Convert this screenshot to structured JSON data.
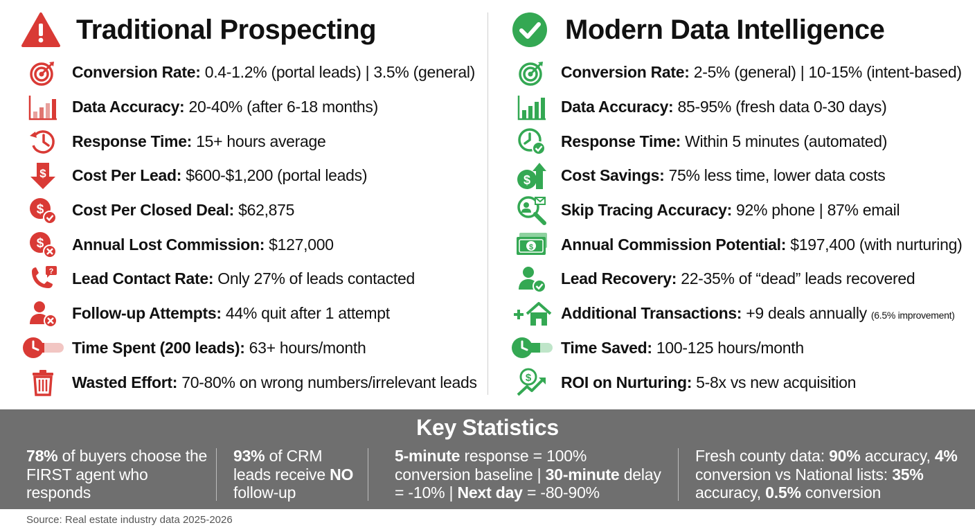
{
  "colors": {
    "accent_red": "#d93a35",
    "accent_green": "#34a853",
    "stats_bg": "#6f6f6f"
  },
  "traditional": {
    "title": "Traditional Prospecting",
    "header_icon": "warning-icon",
    "items": [
      {
        "icon": "target-icon",
        "label": "Conversion Rate:",
        "value": " 0.4-1.2% (portal leads) | 3.5% (general)"
      },
      {
        "icon": "bar-chart-icon",
        "label": "Data Accuracy:",
        "value": " 20-40% (after 6-18 months)"
      },
      {
        "icon": "history-clock-icon",
        "label": "Response Time:",
        "value": " 15+ hours average"
      },
      {
        "icon": "dollar-down-icon",
        "label": "Cost Per Lead:",
        "value": " $600-$1,200 (portal leads)"
      },
      {
        "icon": "dollar-check-icon",
        "label": "Cost Per Closed Deal:",
        "value": " $62,875"
      },
      {
        "icon": "dollar-x-icon",
        "label": "Annual Lost Commission:",
        "value": " $127,000"
      },
      {
        "icon": "phone-question-icon",
        "label": "Lead Contact Rate:",
        "value": " Only 27% of leads contacted"
      },
      {
        "icon": "person-x-icon",
        "label": "Follow-up Attempts:",
        "value": " 44% quit after 1 attempt"
      },
      {
        "icon": "timer-icon",
        "label": "Time Spent (200 leads):",
        "value": " 63+ hours/month"
      },
      {
        "icon": "trash-icon",
        "label": "Wasted Effort:",
        "value": " 70-80% on wrong numbers/irrelevant leads"
      }
    ]
  },
  "modern": {
    "title": "Modern Data Intelligence",
    "header_icon": "check-circle-icon",
    "items": [
      {
        "icon": "target-icon",
        "label": "Conversion Rate:",
        "value": " 2-5% (general) | 10-15% (intent-based)",
        "note": ""
      },
      {
        "icon": "bar-chart-icon",
        "label": "Data Accuracy:",
        "value": " 85-95% (fresh data 0-30 days)",
        "note": ""
      },
      {
        "icon": "clock-check-icon",
        "label": "Response Time:",
        "value": " Within 5 minutes (automated)",
        "note": ""
      },
      {
        "icon": "dollar-up-icon",
        "label": "Cost Savings:",
        "value": " 75% less time, lower data costs",
        "note": ""
      },
      {
        "icon": "magnify-contact-icon",
        "label": "Skip Tracing Accuracy:",
        "value": " 92% phone | 87% email",
        "note": ""
      },
      {
        "icon": "money-stack-icon",
        "label": "Annual Commission Potential:",
        "value": " $197,400 (with nurturing)",
        "note": ""
      },
      {
        "icon": "person-check-icon",
        "label": "Lead Recovery:",
        "value": " 22-35% of “dead” leads recovered",
        "note": ""
      },
      {
        "icon": "plus-house-icon",
        "label": "Additional Transactions:",
        "value": " +9 deals annually ",
        "note": "(6.5% improvement)"
      },
      {
        "icon": "timer-icon",
        "label": "Time Saved:",
        "value": " 100-125 hours/month",
        "note": ""
      },
      {
        "icon": "dollar-growth-icon",
        "label": "ROI on Nurturing:",
        "value": " 5-8x vs new acquisition",
        "note": ""
      }
    ]
  },
  "stats": {
    "title": "Key Statistics",
    "s1": {
      "b1": "78%",
      "t1": " of buyers choose the FIRST agent who responds"
    },
    "s2": {
      "b1": "93%",
      "t1": " of CRM leads receive ",
      "b2": "NO",
      "t2": " follow-up"
    },
    "s3": {
      "b1": "5-minute",
      "t1": " response = 100% conversion baseline | ",
      "b2": "30-minute",
      "t2": " delay = -10% | ",
      "b3": "Next day",
      "t3": " = -80-90%"
    },
    "s4": {
      "t0": "Fresh county data: ",
      "b1": "90%",
      "t1": " accuracy, ",
      "b2": "4%",
      "t2": " conversion vs National lists: ",
      "b3": "35%",
      "t3": " accuracy, ",
      "b4": "0.5%",
      "t4": " conversion"
    }
  },
  "source": "Source: Real estate industry data 2025-2026"
}
